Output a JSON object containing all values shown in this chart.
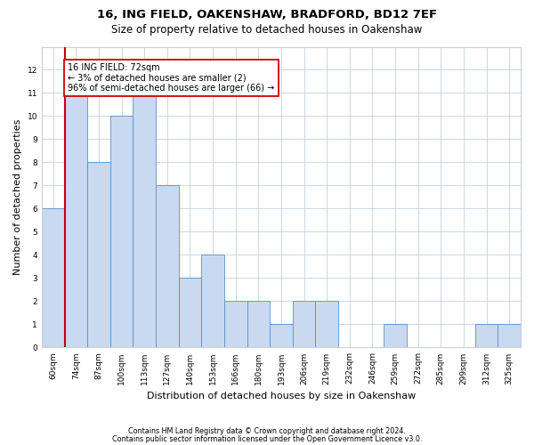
{
  "title1": "16, ING FIELD, OAKENSHAW, BRADFORD, BD12 7EF",
  "title2": "Size of property relative to detached houses in Oakenshaw",
  "xlabel": "Distribution of detached houses by size in Oakenshaw",
  "ylabel": "Number of detached properties",
  "categories": [
    "60sqm",
    "74sqm",
    "87sqm",
    "100sqm",
    "113sqm",
    "127sqm",
    "140sqm",
    "153sqm",
    "166sqm",
    "180sqm",
    "193sqm",
    "206sqm",
    "219sqm",
    "232sqm",
    "246sqm",
    "259sqm",
    "272sqm",
    "285sqm",
    "299sqm",
    "312sqm",
    "325sqm"
  ],
  "values": [
    6,
    11,
    8,
    10,
    11,
    7,
    3,
    4,
    2,
    2,
    1,
    2,
    2,
    0,
    0,
    1,
    0,
    0,
    0,
    1,
    1
  ],
  "bar_color": "#c9d9ef",
  "bar_edge_color": "#5b8fc9",
  "highlight_line_color": "#cc0000",
  "annotation_line1": "16 ING FIELD: 72sqm",
  "annotation_line2": "← 3% of detached houses are smaller (2)",
  "annotation_line3": "96% of semi-detached houses are larger (66) →",
  "annotation_box_color": "#cc0000",
  "ylim": [
    0,
    13
  ],
  "yticks": [
    0,
    1,
    2,
    3,
    4,
    5,
    6,
    7,
    8,
    9,
    10,
    11,
    12
  ],
  "footer1": "Contains HM Land Registry data © Crown copyright and database right 2024.",
  "footer2": "Contains public sector information licensed under the Open Government Licence v3.0.",
  "bg_color": "#ffffff",
  "grid_color": "#c8d0de",
  "title1_fontsize": 9.5,
  "title2_fontsize": 8.5,
  "tick_fontsize": 6.5,
  "ylabel_fontsize": 8,
  "xlabel_fontsize": 8,
  "footer_fontsize": 5.8,
  "annot_fontsize": 7
}
